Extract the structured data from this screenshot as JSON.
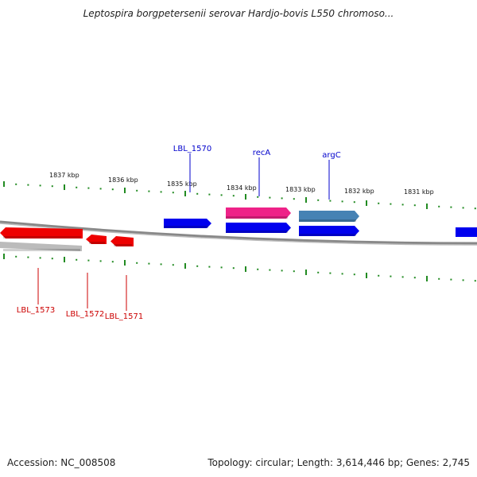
{
  "title": "Leptospira borgpetersenii serovar Hardjo-bovis L550 chromoso...",
  "footer": {
    "accession": "Accession: NC_008508",
    "summary": "Topology: circular; Length: 3,614,446 bp; Genes: 2,745"
  },
  "colors": {
    "forward_gene": "#0000ee",
    "reverse_gene": "#ee0000",
    "highlight_gene": "#ee2288",
    "rna_gene": "#4682b4",
    "ticks": "#228b22",
    "backbone": "#777777",
    "forward_label": "#0000cc",
    "reverse_label": "#cc0000"
  },
  "scale_labels": [
    "1837 kbp",
    "1836 kbp",
    "1835 kbp",
    "1834 kbp",
    "1833 kbp",
    "1832 kbp",
    "1831 kbp"
  ],
  "forward_genes": [
    {
      "label": "LBL_1570",
      "color": "#0000ee",
      "type": "forward_gene"
    },
    {
      "label": "recA",
      "color": "#ee2288",
      "type": "highlight_gene"
    },
    {
      "label": "argC",
      "color": "#4682b4",
      "type": "rna_gene"
    },
    {
      "label": "",
      "color": "#0000ee",
      "type": "forward_gene"
    },
    {
      "label": "",
      "color": "#0000ee",
      "type": "forward_gene"
    }
  ],
  "reverse_genes": [
    {
      "label": "LBL_1573",
      "color": "#ee0000",
      "type": "reverse_gene"
    },
    {
      "label": "LBL_1572",
      "color": "#ee0000",
      "type": "reverse_gene"
    },
    {
      "label": "LBL_1571",
      "color": "#ee0000",
      "type": "reverse_gene"
    },
    {
      "label": "",
      "color": "#bbbbbb",
      "type": "pseudogene"
    }
  ]
}
